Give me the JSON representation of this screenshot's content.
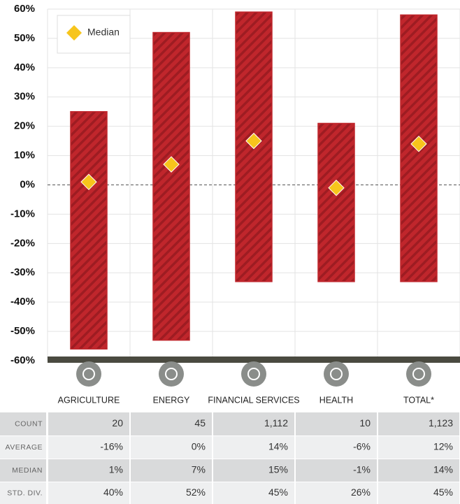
{
  "chart_data": {
    "type": "range_bar",
    "categories": [
      "AGRICULTURE",
      "ENERGY",
      "FINANCIAL SERVICES",
      "HEALTH",
      "TOTAL*"
    ],
    "low": [
      -56,
      -53,
      -33,
      -33,
      -33
    ],
    "high": [
      25,
      52,
      59,
      21,
      58
    ],
    "bar_color": "#c0262c",
    "median_series": {
      "name": "Median",
      "color": "#f7c51c",
      "values": [
        1,
        7,
        15,
        -1,
        14
      ]
    },
    "ylim": [
      -60,
      60
    ],
    "yticks": [
      {
        "value": -60,
        "label": "-60%"
      },
      {
        "value": -50,
        "label": "-50%"
      },
      {
        "value": -40,
        "label": "-40%"
      },
      {
        "value": -30,
        "label": "-30%"
      },
      {
        "value": -20,
        "label": "-20%"
      },
      {
        "value": -10,
        "label": "-10%"
      },
      {
        "value": 0,
        "label": "0%"
      },
      {
        "value": 10,
        "label": "10%"
      },
      {
        "value": 20,
        "label": "20%"
      },
      {
        "value": 30,
        "label": "30%"
      },
      {
        "value": 40,
        "label": "40%"
      },
      {
        "value": 50,
        "label": "50%"
      },
      {
        "value": 60,
        "label": "60%"
      }
    ],
    "grid": true
  },
  "table": {
    "rows": [
      {
        "label": "COUNT",
        "cells": [
          "20",
          "45",
          "1,112",
          "10",
          "1,123"
        ]
      },
      {
        "label": "AVERAGE",
        "cells": [
          "-16%",
          "0%",
          "14%",
          "-6%",
          "12%"
        ]
      },
      {
        "label": "MEDIAN",
        "cells": [
          "1%",
          "7%",
          "15%",
          "-1%",
          "14%"
        ]
      },
      {
        "label": "STD. DIV.",
        "cells": [
          "40%",
          "52%",
          "45%",
          "26%",
          "45%"
        ]
      }
    ]
  }
}
